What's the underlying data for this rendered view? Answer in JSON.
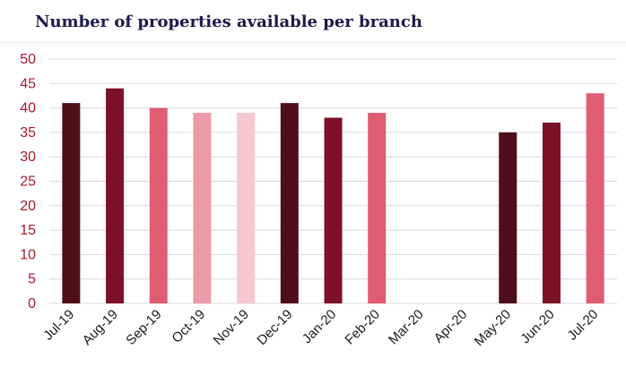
{
  "title": "Number of properties available per branch",
  "chart_data": {
    "type": "bar",
    "title": "Number of properties available per branch",
    "categories": [
      "Jul-19",
      "Aug-19",
      "Sep-19",
      "Oct-19",
      "Nov-19",
      "Dec-19",
      "Jan-20",
      "Feb-20",
      "Mar-20",
      "Apr-20",
      "May-20",
      "Jun-20",
      "Jul-20"
    ],
    "values": [
      41,
      44,
      40,
      39,
      39,
      41,
      38,
      39,
      null,
      null,
      35,
      37,
      43
    ],
    "colors": [
      "#4e0e1b",
      "#7d1128",
      "#df5c72",
      "#ec9aa8",
      "#f5c8cf",
      "#4e0e1b",
      "#7d1128",
      "#df5c72",
      null,
      null,
      "#4e0e1b",
      "#7d1128",
      "#df5c72"
    ],
    "yticks": [
      0,
      5,
      10,
      15,
      20,
      25,
      30,
      35,
      40,
      45,
      50
    ],
    "ylim": [
      0,
      50
    ],
    "grid": true,
    "xlabel": "",
    "ylabel": ""
  }
}
